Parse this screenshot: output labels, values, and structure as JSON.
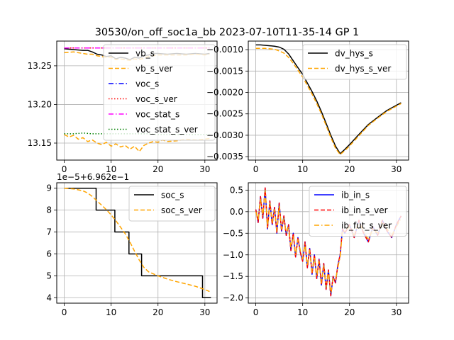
{
  "figure": {
    "title": "30530/on_off_soc1a_bb   2023-07-10T11-35-14 GP 1"
  },
  "chart_data": [
    {
      "type": "line",
      "id": "vb",
      "xlim": [
        -1.6,
        32.6
      ],
      "ylim": [
        13.128,
        13.282
      ],
      "xticks": [
        0,
        10,
        20,
        30
      ],
      "yticks": [
        13.15,
        13.2,
        13.25
      ],
      "ytick_labels": [
        "13.15",
        "13.20",
        "13.25"
      ],
      "grid": true,
      "legend": {
        "placement": "top-right",
        "labels": [
          "vb_s",
          "vb_s_ver",
          "voc_s",
          "voc_s_ver",
          "voc_stat_s",
          "voc_stat_s_ver"
        ]
      },
      "series": [
        {
          "name": "vb_s",
          "color": "#000000",
          "dash": "solid",
          "x": [
            0,
            2,
            4,
            5,
            6,
            7,
            8,
            9,
            10,
            11,
            12,
            13,
            14,
            15,
            16,
            17,
            18,
            19,
            20,
            22,
            24,
            26,
            28,
            30,
            31
          ],
          "y": [
            13.272,
            13.271,
            13.27,
            13.27,
            13.268,
            13.265,
            13.264,
            13.262,
            13.263,
            13.259,
            13.261,
            13.26,
            13.258,
            13.261,
            13.26,
            13.263,
            13.264,
            13.266,
            13.266,
            13.265,
            13.266,
            13.265,
            13.266,
            13.265,
            13.266
          ]
        },
        {
          "name": "vb_s_ver",
          "color": "#ffa500",
          "dash": "dashed",
          "x": [
            0,
            2,
            4,
            5,
            6,
            7,
            8,
            9,
            10,
            11,
            12,
            13,
            14,
            15,
            16,
            17,
            18,
            19,
            20,
            22,
            24,
            26,
            28,
            30,
            31
          ],
          "y": [
            13.267,
            13.268,
            13.266,
            13.265,
            13.265,
            13.263,
            13.262,
            13.261,
            13.261,
            13.258,
            13.259,
            13.258,
            13.257,
            13.259,
            13.258,
            13.26,
            13.262,
            13.263,
            13.264,
            13.264,
            13.264,
            13.264,
            13.265,
            13.264,
            13.265
          ]
        },
        {
          "name": "voc_s",
          "color": "#0000ff",
          "dash": "dashdot",
          "x": [
            0,
            31
          ],
          "y": [
            13.273,
            13.273
          ]
        },
        {
          "name": "voc_s_ver",
          "color": "#ff0000",
          "dash": "dotted",
          "x": [
            0,
            31
          ],
          "y": [
            13.273,
            13.273
          ]
        },
        {
          "name": "voc_stat_s",
          "color": "#ff00ff",
          "dash": "dashdot",
          "x": [
            0,
            31
          ],
          "y": [
            13.273,
            13.273
          ]
        },
        {
          "name": "voc_stat_s_ver",
          "color": "#008000",
          "dash": "dotted",
          "x": [
            0,
            2,
            4,
            6,
            8,
            10,
            12,
            14,
            16,
            18,
            20,
            22,
            24,
            26,
            28,
            30,
            31
          ],
          "y": [
            13.162,
            13.162,
            13.163,
            13.162,
            13.162,
            13.162,
            13.162,
            13.162,
            13.162,
            13.162,
            13.161,
            13.161,
            13.161,
            13.161,
            13.161,
            13.161,
            13.161
          ]
        },
        {
          "name": "",
          "color": "#ffa500",
          "dash": "dashed",
          "x": [
            0,
            1,
            2,
            3,
            4,
            5,
            6,
            7,
            8,
            9,
            10,
            11,
            12,
            13,
            14,
            15,
            16,
            17,
            18,
            19,
            20,
            21,
            22,
            24,
            26,
            28,
            30,
            31
          ],
          "y": [
            13.161,
            13.158,
            13.16,
            13.155,
            13.157,
            13.152,
            13.154,
            13.15,
            13.148,
            13.151,
            13.146,
            13.149,
            13.145,
            13.147,
            13.142,
            13.146,
            13.139,
            13.147,
            13.15,
            13.152,
            13.151,
            13.154,
            13.152,
            13.153,
            13.155,
            13.154,
            13.155,
            13.156
          ]
        }
      ]
    },
    {
      "type": "line",
      "id": "dv_hys",
      "xlim": [
        -1.6,
        32.6
      ],
      "ylim": [
        -0.00358,
        -0.0008
      ],
      "xticks": [
        0,
        10,
        20,
        30
      ],
      "yticks": [
        -0.001,
        -0.0015,
        -0.002,
        -0.0025,
        -0.003,
        -0.0035
      ],
      "ytick_labels": [
        "−0.0010",
        "−0.0015",
        "−0.0020",
        "−0.0025",
        "−0.0030",
        "−0.0035"
      ],
      "grid": true,
      "legend": {
        "placement": "top-right",
        "labels": [
          "dv_hys_s",
          "dv_hys_s_ver"
        ]
      },
      "series": [
        {
          "name": "dv_hys_s",
          "color": "#000000",
          "dash": "solid",
          "x": [
            0,
            1,
            2,
            3,
            4,
            5,
            6,
            7,
            8,
            9,
            10,
            11,
            12,
            13,
            14,
            15,
            16,
            17,
            18,
            19,
            20,
            22,
            24,
            26,
            28,
            30,
            31
          ],
          "y": [
            -0.00089,
            -0.00089,
            -0.0009,
            -0.00091,
            -0.00092,
            -0.00094,
            -0.00099,
            -0.0011,
            -0.00126,
            -0.00142,
            -0.00158,
            -0.00178,
            -0.00198,
            -0.0022,
            -0.00245,
            -0.00272,
            -0.003,
            -0.00325,
            -0.00343,
            -0.00333,
            -0.00322,
            -0.00298,
            -0.00275,
            -0.00258,
            -0.00242,
            -0.0023,
            -0.00224
          ]
        },
        {
          "name": "dv_hys_s_ver",
          "color": "#ffa500",
          "dash": "dashed",
          "x": [
            0,
            1,
            2,
            3,
            4,
            5,
            6,
            7,
            8,
            9,
            10,
            11,
            12,
            13,
            14,
            15,
            16,
            17,
            18,
            19,
            20,
            22,
            24,
            26,
            28,
            30,
            31
          ],
          "y": [
            -0.00097,
            -0.00097,
            -0.00097,
            -0.00098,
            -0.00099,
            -0.00103,
            -0.00108,
            -0.00118,
            -0.00132,
            -0.00148,
            -0.00164,
            -0.00184,
            -0.00204,
            -0.00226,
            -0.0025,
            -0.00277,
            -0.00305,
            -0.0033,
            -0.00345,
            -0.00336,
            -0.00325,
            -0.00301,
            -0.00277,
            -0.0026,
            -0.00244,
            -0.00232,
            -0.00226
          ]
        }
      ]
    },
    {
      "type": "line",
      "id": "soc",
      "scale_label": "1e−5+6.962e−1",
      "xlim": [
        -1.6,
        32.6
      ],
      "ylim": [
        3.75,
        9.25
      ],
      "xticks": [
        0,
        10,
        20,
        30
      ],
      "yticks": [
        4,
        5,
        6,
        7,
        8,
        9
      ],
      "ytick_labels": [
        "4",
        "5",
        "6",
        "7",
        "8",
        "9"
      ],
      "grid": true,
      "legend": {
        "placement": "top-right",
        "labels": [
          "soc_s",
          "soc_s_ver"
        ]
      },
      "series": [
        {
          "name": "soc_s",
          "color": "#000000",
          "dash": "solid",
          "x": [
            0,
            6.8,
            6.8,
            10.8,
            10.8,
            13.8,
            13.8,
            16.5,
            16.5,
            29.5,
            29.5,
            31.3
          ],
          "y": [
            9,
            9,
            8,
            8,
            7,
            7,
            6,
            6,
            5,
            5,
            4,
            4
          ]
        },
        {
          "name": "soc_s_ver",
          "color": "#ffa500",
          "dash": "dashed",
          "x": [
            0,
            2,
            4,
            5,
            6,
            7,
            8,
            9,
            10,
            11,
            12,
            13,
            14,
            15,
            16,
            17,
            18,
            20,
            22,
            24,
            26,
            28,
            30,
            31
          ],
          "y": [
            9.0,
            8.97,
            8.88,
            8.78,
            8.62,
            8.42,
            8.22,
            8.02,
            7.78,
            7.52,
            7.22,
            6.92,
            6.55,
            6.12,
            5.72,
            5.38,
            5.18,
            5.0,
            4.85,
            4.73,
            4.63,
            4.52,
            4.37,
            4.28
          ]
        }
      ]
    },
    {
      "type": "line",
      "id": "ib",
      "xlim": [
        -1.6,
        32.6
      ],
      "ylim": [
        -2.12,
        0.67
      ],
      "xticks": [
        0,
        10,
        20,
        30
      ],
      "yticks": [
        0.5,
        0.0,
        -0.5,
        -1.0,
        -1.5,
        -2.0
      ],
      "ytick_labels": [
        "0.5",
        "0.0",
        "−0.5",
        "−1.0",
        "−1.5",
        "−2.0"
      ],
      "grid": true,
      "legend": {
        "placement": "top-right",
        "labels": [
          "ib_in_s",
          "ib_in_s_ver",
          "ib_fut_s_ver"
        ]
      },
      "series": [
        {
          "name": "ib_in_s",
          "color": "#0000ff",
          "dash": "solid",
          "x": [
            0,
            0.5,
            1,
            1.5,
            2,
            2.5,
            3,
            3.5,
            4,
            4.5,
            5,
            5.5,
            6,
            6.5,
            7,
            7.5,
            8,
            8.5,
            9,
            9.5,
            10,
            10.5,
            11,
            11.5,
            12,
            12.5,
            13,
            13.5,
            14,
            14.5,
            15,
            15.5,
            16,
            16.5,
            17,
            17.5,
            18,
            18.5,
            19,
            20,
            21,
            22,
            23,
            24,
            25,
            26,
            27,
            28,
            29,
            30,
            31
          ],
          "y": [
            0.05,
            -0.25,
            0.35,
            -0.15,
            0.55,
            -0.4,
            0.25,
            -0.3,
            0.1,
            -0.5,
            0.2,
            -0.45,
            -0.1,
            -0.55,
            -0.3,
            -0.9,
            -0.5,
            -1.05,
            -0.6,
            -0.95,
            -1.15,
            -0.7,
            -1.3,
            -0.85,
            -1.45,
            -1.0,
            -1.55,
            -1.1,
            -1.7,
            -1.2,
            -1.8,
            -1.35,
            -1.95,
            -1.5,
            -1.65,
            -1.25,
            -1.0,
            -0.4,
            -0.5,
            -0.3,
            -0.6,
            -0.2,
            -0.5,
            -0.7,
            -0.35,
            -0.55,
            -0.2,
            -0.45,
            -0.6,
            -0.3,
            -0.1
          ]
        },
        {
          "name": "ib_in_s_ver",
          "color": "#ff0000",
          "dash": "dashed",
          "x": [
            0,
            0.5,
            1,
            1.5,
            2,
            2.5,
            3,
            3.5,
            4,
            4.5,
            5,
            5.5,
            6,
            6.5,
            7,
            7.5,
            8,
            8.5,
            9,
            9.5,
            10,
            10.5,
            11,
            11.5,
            12,
            12.5,
            13,
            13.5,
            14,
            14.5,
            15,
            15.5,
            16,
            16.5,
            17,
            17.5,
            18,
            18.5,
            19,
            20,
            21,
            22,
            23,
            24,
            25,
            26,
            27,
            28,
            29,
            30,
            31
          ],
          "y": [
            0.05,
            -0.25,
            0.35,
            -0.15,
            0.55,
            -0.4,
            0.25,
            -0.3,
            0.1,
            -0.5,
            0.2,
            -0.45,
            -0.1,
            -0.55,
            -0.3,
            -0.9,
            -0.5,
            -1.05,
            -0.6,
            -0.95,
            -1.15,
            -0.7,
            -1.3,
            -0.85,
            -1.45,
            -1.0,
            -1.55,
            -1.1,
            -1.7,
            -1.2,
            -1.8,
            -1.35,
            -1.95,
            -1.5,
            -1.65,
            -1.25,
            -1.0,
            -0.4,
            -0.5,
            -0.3,
            -0.6,
            -0.2,
            -0.5,
            -0.7,
            -0.35,
            -0.55,
            -0.2,
            -0.45,
            -0.6,
            -0.3,
            -0.1
          ]
        },
        {
          "name": "ib_fut_s_ver",
          "color": "#ffa500",
          "dash": "dashdot",
          "x": [
            0,
            0.5,
            1,
            1.5,
            2,
            2.5,
            3,
            3.5,
            4,
            4.5,
            5,
            5.5,
            6,
            6.5,
            7,
            7.5,
            8,
            8.5,
            9,
            9.5,
            10,
            10.5,
            11,
            11.5,
            12,
            12.5,
            13,
            13.5,
            14,
            14.5,
            15,
            15.5,
            16,
            16.5,
            17,
            17.5,
            18,
            18.5,
            19,
            20,
            21,
            22,
            23,
            24,
            25,
            26,
            27,
            28,
            29,
            30,
            31
          ],
          "y": [
            0.0,
            -0.2,
            0.3,
            -0.1,
            0.5,
            -0.35,
            0.2,
            -0.25,
            0.05,
            -0.45,
            0.15,
            -0.4,
            -0.15,
            -0.5,
            -0.35,
            -0.85,
            -0.55,
            -1.0,
            -0.65,
            -0.9,
            -1.1,
            -0.75,
            -1.25,
            -0.9,
            -1.4,
            -1.05,
            -1.5,
            -1.15,
            -1.65,
            -1.25,
            -1.75,
            -1.4,
            -1.9,
            -1.55,
            -1.6,
            -1.3,
            -1.05,
            -0.45,
            -0.45,
            -0.35,
            -0.55,
            -0.25,
            -0.45,
            -0.65,
            -0.4,
            -0.5,
            -0.25,
            -0.4,
            -0.55,
            -0.35,
            -0.15
          ]
        }
      ]
    }
  ]
}
